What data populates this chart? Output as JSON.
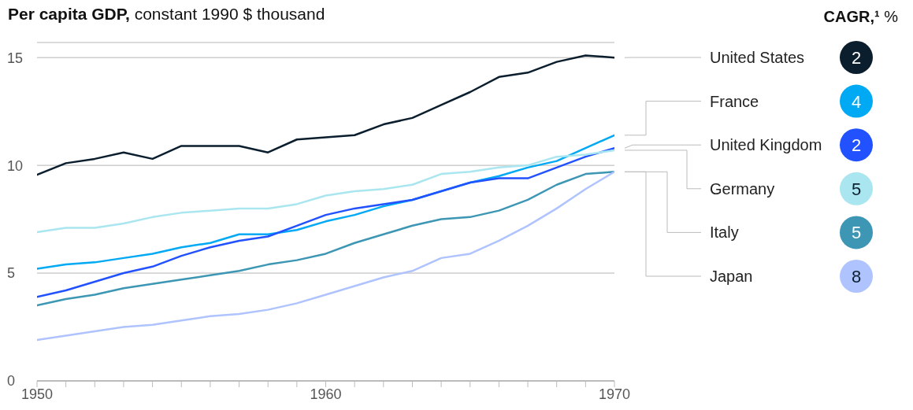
{
  "chart_data": {
    "type": "line",
    "title": "Per capita GDP, constant 1990 $ thousand",
    "legend_title": "CAGR,¹ %",
    "x": [
      1950,
      1951,
      1952,
      1953,
      1954,
      1955,
      1956,
      1957,
      1958,
      1959,
      1960,
      1961,
      1962,
      1963,
      1964,
      1965,
      1966,
      1967,
      1968,
      1969,
      1970
    ],
    "series": [
      {
        "name": "United States",
        "color": "#0b1e2d",
        "values": [
          9.56,
          10.1,
          10.3,
          10.6,
          10.3,
          10.9,
          10.9,
          10.9,
          10.6,
          11.2,
          11.3,
          11.4,
          11.9,
          12.2,
          12.8,
          13.4,
          14.1,
          14.3,
          14.8,
          15.1,
          15.0
        ]
      },
      {
        "name": "France",
        "color": "#00a9f4",
        "values": [
          5.2,
          5.4,
          5.5,
          5.7,
          5.9,
          6.2,
          6.4,
          6.8,
          6.8,
          7.0,
          7.4,
          7.7,
          8.1,
          8.4,
          8.8,
          9.2,
          9.5,
          9.9,
          10.2,
          10.8,
          11.4
        ]
      },
      {
        "name": "United Kingdom",
        "color": "#2251ff",
        "values": [
          3.9,
          4.2,
          4.6,
          5.0,
          5.3,
          5.8,
          6.2,
          6.5,
          6.7,
          7.2,
          7.7,
          8.0,
          8.2,
          8.4,
          8.8,
          9.2,
          9.4,
          9.4,
          9.9,
          10.4,
          10.8
        ]
      },
      {
        "name": "Germany",
        "color": "#aae6f0",
        "values": [
          6.9,
          7.1,
          7.1,
          7.3,
          7.6,
          7.8,
          7.9,
          8.0,
          8.0,
          8.2,
          8.6,
          8.8,
          8.9,
          9.1,
          9.6,
          9.7,
          9.9,
          10.0,
          10.4,
          10.5,
          10.7
        ]
      },
      {
        "name": "Italy",
        "color": "#3c96b4",
        "values": [
          3.5,
          3.8,
          4.0,
          4.3,
          4.5,
          4.7,
          4.9,
          5.1,
          5.4,
          5.6,
          5.9,
          6.4,
          6.8,
          7.2,
          7.5,
          7.6,
          7.9,
          8.4,
          9.1,
          9.6,
          9.7
        ]
      },
      {
        "name": "Japan",
        "color": "#afc3ff",
        "values": [
          1.9,
          2.1,
          2.3,
          2.5,
          2.6,
          2.8,
          3.0,
          3.1,
          3.3,
          3.6,
          4.0,
          4.4,
          4.8,
          5.1,
          5.7,
          5.9,
          6.5,
          7.2,
          8.0,
          8.9,
          9.7
        ]
      }
    ],
    "annotations": [
      "2",
      "4",
      "2",
      "5",
      "5",
      "8"
    ],
    "xlim": [
      1950,
      1970
    ],
    "xticks": [
      1950,
      {
        "value": 1951,
        "label": null
      },
      {
        "value": 1952,
        "label": null
      },
      {
        "value": 1953,
        "label": null
      },
      {
        "value": 1954,
        "label": null
      },
      {
        "value": 1955,
        "label": null
      },
      {
        "value": 1956,
        "label": null
      },
      {
        "value": 1957,
        "label": null
      },
      {
        "value": 1958,
        "label": null
      },
      {
        "value": 1959,
        "label": null
      },
      1960,
      {
        "value": 1961,
        "label": null
      },
      {
        "value": 1962,
        "label": null
      },
      {
        "value": 1963,
        "label": null
      },
      {
        "value": 1964,
        "label": null
      },
      {
        "value": 1965,
        "label": null
      },
      {
        "value": 1966,
        "label": null
      },
      {
        "value": 1967,
        "label": null
      },
      {
        "value": 1968,
        "label": null
      },
      {
        "value": 1969,
        "label": null
      },
      1970
    ],
    "ylim": [
      0,
      15.7
    ],
    "yticks": [
      0,
      5,
      10,
      15
    ],
    "grid": "y",
    "legend": "right",
    "marker": "none",
    "line_style": "solid"
  }
}
